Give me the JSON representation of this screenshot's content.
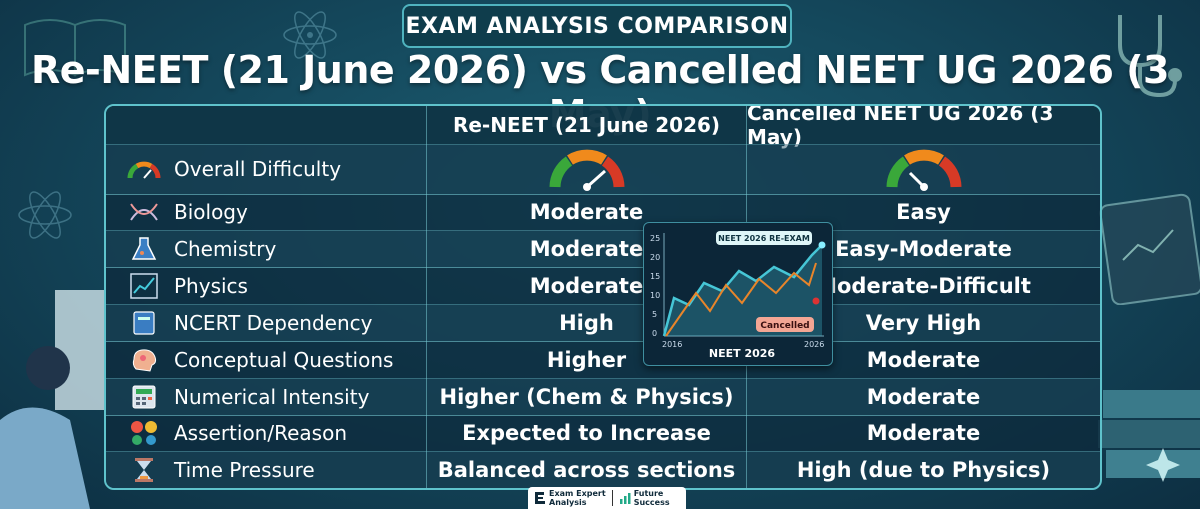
{
  "badge": "EXAM ANALYSIS COMPARISON",
  "title": "Re-NEET (21 June 2026) vs Cancelled NEET UG 2026 (3 May)",
  "table": {
    "headers": [
      "",
      "Re-NEET (21 June 2026)",
      "Cancelled NEET UG 2026 (3 May)"
    ],
    "rows": [
      {
        "icon": "gauge-icon",
        "label": "Overall Difficulty",
        "reneet": "",
        "cancelled": "",
        "reneet_gauge_level": 0.75,
        "cancelled_gauge_level": 0.4
      },
      {
        "icon": "dna-icon",
        "label": "Biology",
        "reneet": "Moderate",
        "cancelled": "Easy"
      },
      {
        "icon": "flask-icon",
        "label": "Chemistry",
        "reneet": "Moderate",
        "cancelled": "Easy-Moderate"
      },
      {
        "icon": "graph-icon",
        "label": "Physics",
        "reneet": "Moderate",
        "cancelled": "Moderate-Difficult"
      },
      {
        "icon": "book-icon",
        "label": "NCERT Dependency",
        "reneet": "High",
        "cancelled": "Very High"
      },
      {
        "icon": "brain-icon",
        "label": "Conceptual Questions",
        "reneet": "Higher",
        "cancelled": "Moderate"
      },
      {
        "icon": "calculator-icon",
        "label": "Numerical Intensity",
        "reneet": "Higher (Chem & Physics)",
        "cancelled": "Moderate"
      },
      {
        "icon": "question-marks-icon",
        "label": "Assertion/Reason",
        "reneet": "Expected to Increase",
        "cancelled": "Moderate"
      },
      {
        "icon": "hourglass-icon",
        "label": "Time Pressure",
        "reneet": "Balanced across sections",
        "cancelled": "High (due to Physics)"
      }
    ]
  },
  "inset_chart": {
    "title": "NEET 2026",
    "tag_reexam": "NEET 2026 RE-EXAM",
    "tag_cancelled": "Cancelled",
    "y_ticks": [
      "25",
      "20",
      "15",
      "10",
      "5",
      "0"
    ],
    "x_ticks": [
      "2016",
      "2026"
    ]
  },
  "footer": {
    "left_top": "Exam Expert",
    "left_bottom": "Analysis",
    "right_top": "Future",
    "right_bottom": "Success"
  },
  "colors": {
    "accent": "#5fc3cc",
    "gauge_green": "#3aa83a",
    "gauge_orange": "#f08a1c",
    "gauge_red": "#d73a26"
  }
}
